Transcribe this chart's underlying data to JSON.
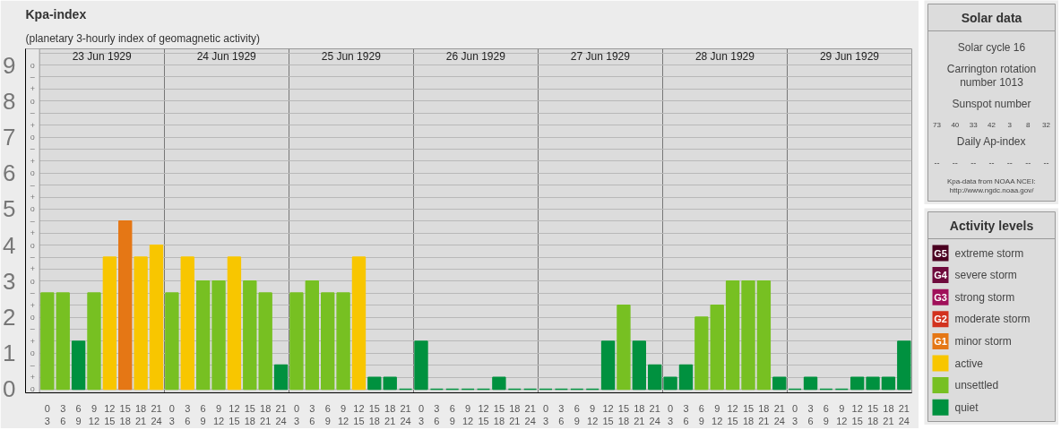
{
  "chart_data": [
    {
      "type": "bar",
      "title": "Kpa-index",
      "subtitle": "(planetary 3-hourly index of geomagnetic activity)",
      "categories": [
        "0\n3",
        "3\n6",
        "6\n9",
        "9\n12",
        "12\n15",
        "15\n18",
        "18\n21",
        "21\n24",
        "0\n3",
        "3\n6",
        "6\n9",
        "9\n12",
        "12\n15",
        "15\n18",
        "18\n21",
        "21\n24",
        "0\n3",
        "3\n6",
        "6\n9",
        "9\n12",
        "12\n15",
        "15\n18",
        "18\n21",
        "21\n24",
        "0\n3",
        "3\n6",
        "6\n9",
        "9\n12",
        "12\n15",
        "15\n18",
        "18\n21",
        "21\n24",
        "0\n3",
        "3\n6",
        "6\n9",
        "9\n12",
        "12\n15",
        "15\n18",
        "18\n21",
        "21\n24",
        "0\n3",
        "3\n6",
        "6\n9",
        "9\n12",
        "12\n15",
        "15\n18",
        "18\n21",
        "21\n24",
        "0\n3",
        "3\n6",
        "6\n9",
        "9\n12",
        "12\n15",
        "15\n18",
        "18\n21",
        "21\n24"
      ],
      "values": [
        2.67,
        2.67,
        1.33,
        2.67,
        3.67,
        4.67,
        3.67,
        4,
        2.67,
        3.67,
        3,
        3,
        3.67,
        3,
        2.67,
        0.67,
        2.67,
        3,
        2.67,
        2.67,
        3.67,
        0.33,
        0.33,
        0,
        1.33,
        0,
        0,
        0,
        0,
        0.33,
        0,
        0,
        0,
        0,
        0,
        0,
        1.33,
        2.33,
        1.33,
        0.67,
        0.33,
        0.67,
        2,
        2.33,
        3,
        3,
        3,
        0.33,
        0,
        0.33,
        0,
        0,
        0.33,
        0.33,
        0.33,
        1.33
      ],
      "colors": [
        "#77c022",
        "#77c022",
        "#00913f",
        "#77c022",
        "#f8c600",
        "#e57715",
        "#f8c600",
        "#f8c600",
        "#77c022",
        "#f8c600",
        "#77c022",
        "#77c022",
        "#f8c600",
        "#77c022",
        "#77c022",
        "#00913f",
        "#77c022",
        "#77c022",
        "#77c022",
        "#77c022",
        "#f8c600",
        "#00913f",
        "#00913f",
        "#00913f",
        "#00913f",
        "#00913f",
        "#00913f",
        "#00913f",
        "#00913f",
        "#00913f",
        "#00913f",
        "#00913f",
        "#00913f",
        "#00913f",
        "#00913f",
        "#00913f",
        "#00913f",
        "#77c022",
        "#00913f",
        "#00913f",
        "#00913f",
        "#00913f",
        "#77c022",
        "#77c022",
        "#77c022",
        "#77c022",
        "#77c022",
        "#00913f",
        "#00913f",
        "#00913f",
        "#00913f",
        "#00913f",
        "#00913f",
        "#00913f",
        "#00913f",
        "#00913f"
      ],
      "ylim": [
        -0.1,
        9.45
      ],
      "yticks": [
        0,
        1,
        2,
        3,
        4,
        5,
        6,
        7,
        8,
        9
      ],
      "annotations": [
        "23 Jun 1929",
        "24 Jun 1929",
        "25 Jun 1929",
        "26 Jun 1929",
        "27 Jun 1929",
        "28 Jun 1929",
        "29 Jun 1929"
      ],
      "grid": true
    },
    {
      "type": "other",
      "annotations": [
        "o",
        "+",
        "–",
        "o",
        "+",
        "–",
        "o",
        "+",
        "–",
        "o",
        "+",
        "–",
        "o",
        "+",
        "–",
        "o",
        "+",
        "–",
        "o",
        "+",
        "–",
        "o",
        "+",
        "–",
        "o",
        "+",
        "–",
        "o"
      ]
    },
    {
      "type": "other",
      "title": "Solar data",
      "annotations": [
        "Solar cycle 16",
        "Carrington rotation\nnumber 1013",
        "Sunspot number",
        "73   40   33   42   3   8   32",
        "Daily Ap-index",
        "--   --   --   --   --   --   --",
        "Kpa-data from NOAA NCEI:\nhttp://www.ngdc.noaa.gov/"
      ]
    },
    {
      "type": "other",
      "title": "Activity levels",
      "categories": [
        "extreme storm",
        "severe storm",
        "strong storm",
        "moderate storm",
        "minor storm",
        "active",
        "unsettled",
        "quiet"
      ],
      "annotations": [
        "G5",
        "G4",
        "G3",
        "G2",
        "G1",
        null,
        null,
        null
      ],
      "colors": [
        "#4a0020",
        "#6e0a3c",
        "#a0105a",
        "#d2321e",
        "#e57715",
        "#f8c600",
        "#77c022",
        "#00913f"
      ]
    }
  ]
}
